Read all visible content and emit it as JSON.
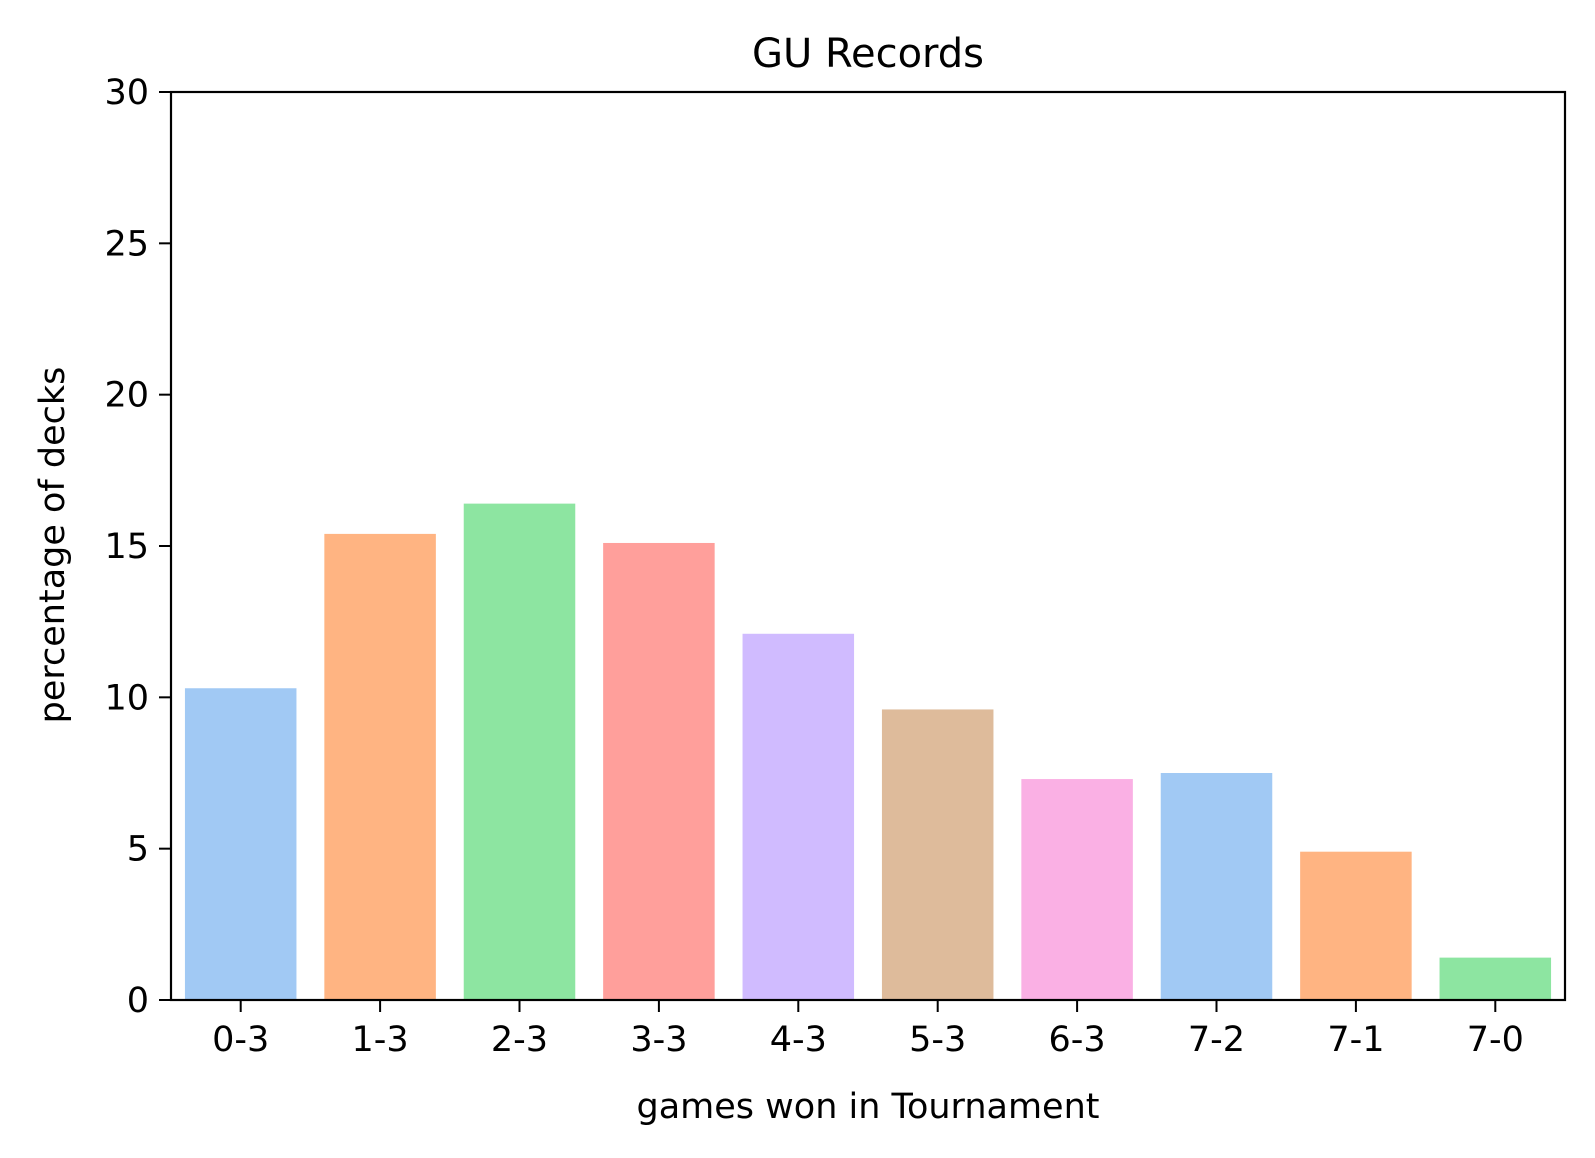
{
  "chart_data": {
    "type": "bar",
    "title": "GU Records",
    "xlabel": "games won in Tournament",
    "ylabel": "percentage of decks",
    "categories": [
      "0-3",
      "1-3",
      "2-3",
      "3-3",
      "4-3",
      "5-3",
      "6-3",
      "7-2",
      "7-1",
      "7-0"
    ],
    "values": [
      10.3,
      15.4,
      16.4,
      15.1,
      12.1,
      9.6,
      7.3,
      7.5,
      4.9,
      1.4
    ],
    "colors": [
      "#a1c9f4",
      "#ffb482",
      "#8de5a1",
      "#ff9f9b",
      "#d0bbff",
      "#debb9b",
      "#fab0e4",
      "#a1c9f4",
      "#ffb482",
      "#8de5a1"
    ],
    "ylim": [
      0,
      30
    ],
    "yticks": [
      0,
      5,
      10,
      15,
      20,
      25,
      30
    ],
    "grid": false,
    "legend": "none"
  }
}
